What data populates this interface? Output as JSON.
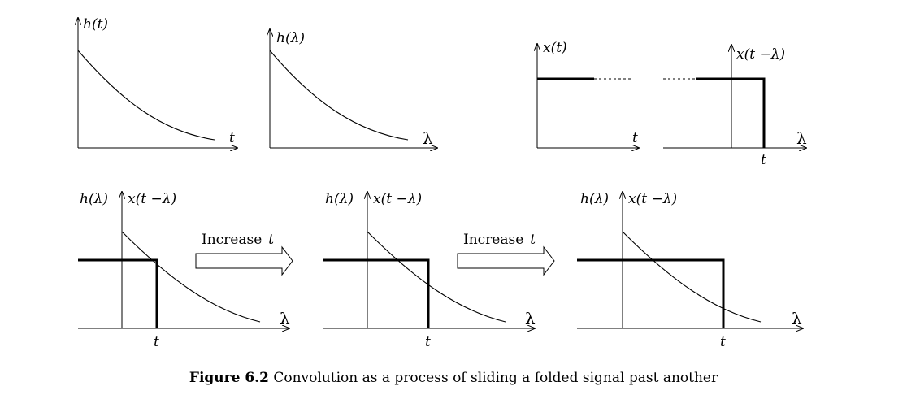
{
  "panels": {
    "h_t": {
      "ylabel": "h(t)",
      "xlabel": "t"
    },
    "h_lambda": {
      "ylabel": "h(λ)",
      "xlabel": "λ"
    },
    "x_t": {
      "ylabel": "x(t)",
      "xlabel": "t"
    },
    "x_folded": {
      "ylabel": "x(t −λ)",
      "xlabel": "λ",
      "marker": "t"
    },
    "overlap_1": {
      "ylabel_h": "h(λ)",
      "ylabel_x": "x(t −λ)",
      "xlabel": "λ",
      "marker": "t"
    },
    "overlap_2": {
      "ylabel_h": "h(λ)",
      "ylabel_x": "x(t −λ)",
      "xlabel": "λ",
      "marker": "t"
    },
    "overlap_3": {
      "ylabel_h": "h(λ)",
      "ylabel_x": "x(t −λ)",
      "xlabel": "λ",
      "marker": "t"
    }
  },
  "arrows": [
    {
      "label": "Increase",
      "var": "t"
    },
    {
      "label": "Increase",
      "var": "t"
    }
  ],
  "caption": {
    "number": "Figure 6.2",
    "text": " Convolution as a process of sliding a folded signal past another"
  }
}
